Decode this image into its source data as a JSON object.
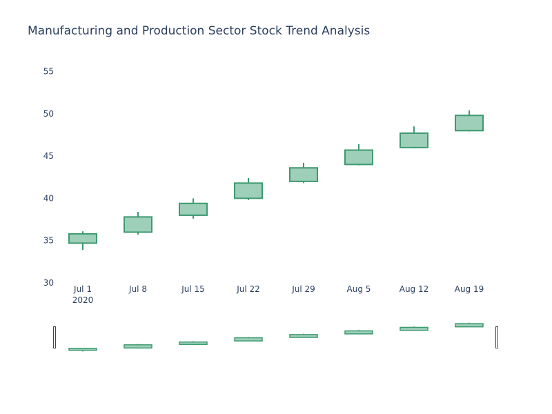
{
  "chart_data": {
    "type": "candlestick",
    "title": "Manufacturing and Production Sector Stock Trend Analysis",
    "x": [
      "Jul 1",
      "Jul 8",
      "Jul 15",
      "Jul 22",
      "Jul 29",
      "Aug 5",
      "Aug 12",
      "Aug 19"
    ],
    "x_year_label": "2020",
    "open": [
      34.7,
      36.0,
      38.0,
      40.0,
      42.0,
      44.0,
      46.0,
      48.0
    ],
    "high": [
      36.1,
      38.4,
      40.0,
      42.4,
      44.2,
      46.4,
      48.5,
      50.4
    ],
    "low": [
      33.9,
      35.7,
      37.6,
      39.8,
      41.8,
      43.9,
      45.9,
      47.9
    ],
    "close": [
      35.8,
      37.8,
      39.4,
      41.8,
      43.6,
      45.7,
      47.7,
      49.8
    ],
    "y_ticks": [
      30,
      35,
      40,
      45,
      50,
      55
    ],
    "ylim": [
      30,
      57
    ],
    "xlabel": "",
    "ylabel": "",
    "increasing_color": "#3d9970",
    "increasing_fill": "#9ecfb8",
    "rangeslider": true,
    "grid": false
  }
}
